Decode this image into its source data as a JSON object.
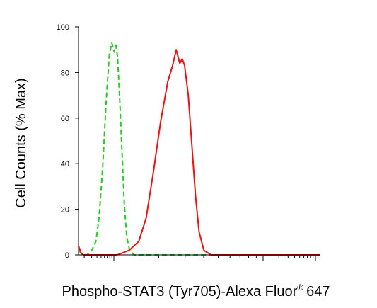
{
  "chart_data": {
    "type": "line",
    "title": "",
    "xlabel": "Phospho-STAT3 (Tyr705)-Alexa Fluor",
    "xlabel_superscript": "®",
    "xlabel_suffix": "647",
    "ylabel": "Cell Counts (% Max)",
    "xscale": "log",
    "xlim": [
      0,
      10
    ],
    "ylim": [
      0,
      100
    ],
    "yticks": [
      "0",
      "20",
      "40",
      "60",
      "80",
      "100"
    ],
    "grid": false,
    "legend": "none",
    "series": [
      {
        "style": "dashed",
        "color": "#22cc22",
        "x": [
          0.0,
          0.18,
          0.35,
          0.55,
          0.72,
          0.85,
          1.0,
          1.15,
          1.28,
          1.38,
          1.48,
          1.55,
          1.62,
          1.7,
          1.8,
          1.9,
          2.0,
          2.12,
          2.3,
          2.6,
          3.0,
          4.0,
          10.0
        ],
        "y": [
          2,
          0,
          0,
          2,
          6,
          16,
          38,
          68,
          88,
          93,
          89,
          92,
          87,
          70,
          46,
          22,
          8,
          2,
          0,
          0,
          0,
          0,
          0
        ]
      },
      {
        "style": "solid",
        "color": "#ee1111",
        "x": [
          0.0,
          0.1,
          0.2,
          0.3,
          1.0,
          1.6,
          2.1,
          2.5,
          2.8,
          3.1,
          3.4,
          3.7,
          3.9,
          4.05,
          4.2,
          4.3,
          4.4,
          4.55,
          4.7,
          4.85,
          5.0,
          5.2,
          5.5,
          5.8,
          6.2,
          10.0
        ],
        "y": [
          4,
          1,
          0,
          0,
          0,
          0,
          2,
          6,
          16,
          36,
          58,
          76,
          83,
          90,
          84,
          86,
          83,
          70,
          48,
          26,
          10,
          2,
          0,
          0,
          0,
          0
        ]
      }
    ]
  }
}
